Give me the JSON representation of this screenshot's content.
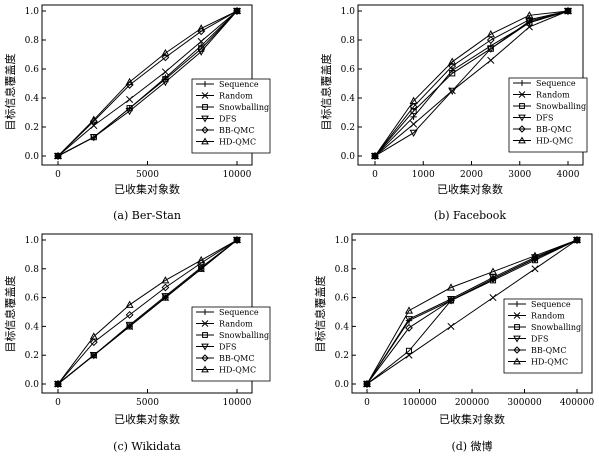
{
  "chart_data": [
    {
      "type": "line",
      "caption": "(a) Ber-Stan",
      "xlabel": "已收集对象数",
      "ylabel": "目标信息覆盖度",
      "xlim": [
        0,
        10000
      ],
      "ylim": [
        0,
        1.0
      ],
      "xticks": [
        "0",
        "5000",
        "10000"
      ],
      "yticks": [
        "0.0",
        "0.2",
        "0.4",
        "0.6",
        "0.8",
        "1.0"
      ],
      "legend_position": "bottom-right",
      "x": [
        0,
        2000,
        4000,
        6000,
        8000,
        10000
      ],
      "series": [
        {
          "name": "Sequence",
          "marker": "plus",
          "values": [
            0,
            0.13,
            0.33,
            0.54,
            0.76,
            1.0
          ]
        },
        {
          "name": "Random",
          "marker": "x",
          "values": [
            0,
            0.21,
            0.39,
            0.58,
            0.79,
            1.0
          ]
        },
        {
          "name": "Snowballing",
          "marker": "square",
          "values": [
            0,
            0.13,
            0.33,
            0.53,
            0.74,
            1.0
          ]
        },
        {
          "name": "DFS",
          "marker": "triangle-down",
          "values": [
            0,
            0.13,
            0.31,
            0.51,
            0.72,
            1.0
          ]
        },
        {
          "name": "BB-QMC",
          "marker": "diamond",
          "values": [
            0,
            0.24,
            0.49,
            0.68,
            0.86,
            1.0
          ]
        },
        {
          "name": "HD-QMC",
          "marker": "triangle-up",
          "values": [
            0,
            0.25,
            0.51,
            0.71,
            0.88,
            1.0
          ]
        }
      ]
    },
    {
      "type": "line",
      "caption": "(b) Facebook",
      "xlabel": "已收集对象数",
      "ylabel": "目标信息覆盖度",
      "xlim": [
        0,
        4000
      ],
      "ylim": [
        0,
        1.0
      ],
      "xticks": [
        "0",
        "1000",
        "2000",
        "3000",
        "4000"
      ],
      "yticks": [
        "0.0",
        "0.2",
        "0.4",
        "0.6",
        "0.8",
        "1.0"
      ],
      "legend_position": "bottom-right",
      "x": [
        0,
        800,
        1600,
        2400,
        3200,
        4000
      ],
      "series": [
        {
          "name": "Sequence",
          "marker": "plus",
          "values": [
            0,
            0.27,
            0.59,
            0.76,
            0.92,
            1.0
          ]
        },
        {
          "name": "Random",
          "marker": "x",
          "values": [
            0,
            0.22,
            0.45,
            0.66,
            0.89,
            1.0
          ]
        },
        {
          "name": "Snowballing",
          "marker": "square",
          "values": [
            0,
            0.31,
            0.57,
            0.74,
            0.92,
            1.0
          ]
        },
        {
          "name": "DFS",
          "marker": "triangle-down",
          "values": [
            0,
            0.16,
            0.45,
            0.74,
            0.93,
            1.0
          ]
        },
        {
          "name": "BB-QMC",
          "marker": "diamond",
          "values": [
            0,
            0.34,
            0.62,
            0.8,
            0.94,
            1.0
          ]
        },
        {
          "name": "HD-QMC",
          "marker": "triangle-up",
          "values": [
            0,
            0.38,
            0.65,
            0.84,
            0.97,
            1.0
          ]
        }
      ]
    },
    {
      "type": "line",
      "caption": "(c) Wikidata",
      "xlabel": "已收集对象数",
      "ylabel": "目标信息覆盖度",
      "xlim": [
        0,
        10000
      ],
      "ylim": [
        0,
        1.0
      ],
      "xticks": [
        "0",
        "5000",
        "10000"
      ],
      "yticks": [
        "0.0",
        "0.2",
        "0.4",
        "0.6",
        "0.8",
        "1.0"
      ],
      "legend_position": "bottom-right",
      "x": [
        0,
        2000,
        4000,
        6000,
        8000,
        10000
      ],
      "series": [
        {
          "name": "Sequence",
          "marker": "plus",
          "values": [
            0,
            0.2,
            0.4,
            0.6,
            0.8,
            1.0
          ]
        },
        {
          "name": "Random",
          "marker": "x",
          "values": [
            0,
            0.2,
            0.4,
            0.6,
            0.8,
            1.0
          ]
        },
        {
          "name": "Snowballing",
          "marker": "square",
          "values": [
            0,
            0.2,
            0.4,
            0.6,
            0.8,
            1.0
          ]
        },
        {
          "name": "DFS",
          "marker": "triangle-down",
          "values": [
            0,
            0.2,
            0.41,
            0.61,
            0.81,
            1.0
          ]
        },
        {
          "name": "BB-QMC",
          "marker": "diamond",
          "values": [
            0,
            0.29,
            0.48,
            0.67,
            0.84,
            1.0
          ]
        },
        {
          "name": "HD-QMC",
          "marker": "triangle-up",
          "values": [
            0,
            0.33,
            0.55,
            0.72,
            0.86,
            1.0
          ]
        }
      ]
    },
    {
      "type": "line",
      "caption": "(d)  微博",
      "xlabel": "已收集对象数",
      "ylabel": "目标信息覆盖度",
      "xlim": [
        0,
        400000
      ],
      "ylim": [
        0,
        1.0
      ],
      "xticks": [
        "0",
        "100000",
        "200000",
        "300000",
        "400000"
      ],
      "yticks": [
        "0.0",
        "0.2",
        "0.4",
        "0.6",
        "0.8",
        "1.0"
      ],
      "legend_position": "bottom-right",
      "x": [
        0,
        80000,
        160000,
        240000,
        320000,
        400000
      ],
      "series": [
        {
          "name": "Sequence",
          "marker": "plus",
          "values": [
            0,
            0.44,
            0.58,
            0.73,
            0.87,
            1.0
          ]
        },
        {
          "name": "Random",
          "marker": "x",
          "values": [
            0,
            0.2,
            0.4,
            0.6,
            0.8,
            1.0
          ]
        },
        {
          "name": "Snowballing",
          "marker": "square",
          "values": [
            0,
            0.23,
            0.58,
            0.72,
            0.86,
            1.0
          ]
        },
        {
          "name": "DFS",
          "marker": "triangle-down",
          "values": [
            0,
            0.45,
            0.59,
            0.74,
            0.88,
            1.0
          ]
        },
        {
          "name": "BB-QMC",
          "marker": "diamond",
          "values": [
            0,
            0.39,
            0.58,
            0.73,
            0.87,
            1.0
          ]
        },
        {
          "name": "HD-QMC",
          "marker": "triangle-up",
          "values": [
            0,
            0.51,
            0.67,
            0.78,
            0.89,
            1.0
          ]
        }
      ]
    }
  ]
}
